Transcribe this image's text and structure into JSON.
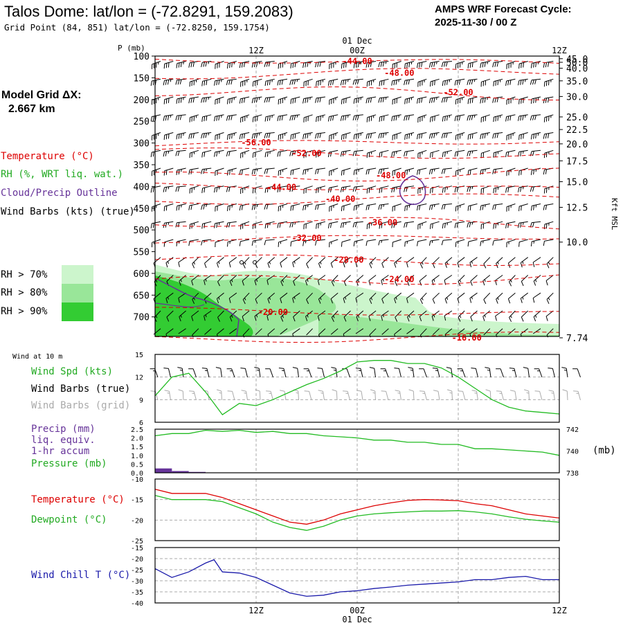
{
  "header": {
    "title": "Talos Dome:  lat/lon = (-72.8291, 159.2083)",
    "grid_point": "Grid Point (84, 851) lat/lon = (-72.8250, 159.1754)",
    "cycle_line1": "AMPS WRF Forecast Cycle:",
    "cycle_line2": "2025-11-30 / 00  Z"
  },
  "sidebar": {
    "model_grid_label": "Model Grid ΔX:",
    "model_grid_value": "2.667 km",
    "legend_temperature": "Temperature (°C)",
    "legend_rh": "RH (%, WRT liq. wat.)",
    "legend_cloud": "Cloud/Precip Outline",
    "legend_wind": "Wind Barbs (kts) (true)",
    "rh_70": "RH > 70%",
    "rh_80": "RH > 80%",
    "rh_90": "RH > 90%"
  },
  "panel_labels": {
    "wind_10m": "Wind at 10 m",
    "wind_spd": "Wind Spd (kts)",
    "wind_barbs_true": "Wind Barbs (true)",
    "wind_barbs_grid": "Wind Barbs (grid)",
    "precip": "Precip (mm)",
    "liq_equiv": "liq. equiv.",
    "accum": "1-hr accum",
    "pressure": "Pressure (mb)",
    "pressure_unit": "(mb)",
    "temperature": "Temperature (°C)",
    "dewpoint": "Dewpoint (°C)",
    "wind_chill": "Wind Chill T (°C)",
    "p_axis_label": "P (mb)",
    "kft_label": "Kft MSL"
  },
  "colors": {
    "temp": "#dd0000",
    "rh70": "#ccf5cc",
    "rh80": "#99e699",
    "rh90": "#33cc33",
    "cloud": "#663399",
    "windspd": "#22bb22",
    "pressure": "#22bb22",
    "precip": "#663399",
    "dewpoint": "#22bb22",
    "windchill": "#1a1aaa",
    "grid_barbs": "#aaaaaa"
  },
  "chart_data": {
    "time_axis": {
      "start_hour": 0,
      "end_hour": 48,
      "tick_hours": [
        12,
        24,
        36,
        48
      ],
      "top_labels": [
        "12Z",
        "00Z",
        "12Z"
      ],
      "date_label": "01 Dec",
      "bottom_labels": [
        "12Z",
        "00Z",
        "12Z"
      ]
    },
    "sounding": {
      "type": "contour",
      "pressure_levels": [
        100,
        150,
        200,
        250,
        300,
        350,
        400,
        450,
        500,
        550,
        600,
        650,
        700
      ],
      "pressure_range": [
        100,
        745
      ],
      "height_labels": [
        "50.0",
        "45.0",
        "40.0",
        "35.0",
        "30.0",
        "25.0",
        "22.5",
        "20.0",
        "17.5",
        "15.0",
        "12.5",
        "10.0",
        "7.74"
      ],
      "height_label_pressures": [
        90,
        106,
        128,
        157,
        193,
        240,
        269,
        302,
        341,
        389,
        448,
        528,
        745
      ],
      "temperature_labels": [
        {
          "text": "-44.00",
          "hour": 24,
          "p": 112
        },
        {
          "text": "-48.00",
          "hour": 29,
          "p": 139
        },
        {
          "text": "-52.00",
          "hour": 36,
          "p": 184
        },
        {
          "text": "-56.00",
          "hour": 12,
          "p": 299
        },
        {
          "text": "-52.00",
          "hour": 18,
          "p": 324
        },
        {
          "text": "-48.00",
          "hour": 28,
          "p": 375
        },
        {
          "text": "-44.00",
          "hour": 15,
          "p": 402
        },
        {
          "text": "-40.00",
          "hour": 22,
          "p": 429
        },
        {
          "text": "-36.00",
          "hour": 27,
          "p": 483
        },
        {
          "text": "-32.00",
          "hour": 18,
          "p": 519
        },
        {
          "text": "-28.00",
          "hour": 23,
          "p": 569
        },
        {
          "text": "-24.00",
          "hour": 29,
          "p": 614
        },
        {
          "text": "-20.00",
          "hour": 14,
          "p": 689
        },
        {
          "text": "-16.00",
          "hour": 37,
          "p": 748
        }
      ]
    },
    "surface_wind": {
      "type": "line",
      "ylim": [
        6,
        15
      ],
      "yticks": [
        6,
        9,
        12,
        15
      ],
      "hours": [
        0,
        2,
        4,
        6,
        8,
        10,
        12,
        14,
        16,
        18,
        20,
        22,
        24,
        26,
        28,
        30,
        32,
        34,
        36,
        38,
        40,
        42,
        44,
        46,
        48
      ],
      "speed_kts": [
        9.5,
        12,
        12.5,
        10,
        7,
        8.5,
        8.2,
        9,
        10,
        11,
        11.8,
        12.8,
        14,
        14.2,
        14.2,
        13.8,
        13.8,
        13.2,
        12,
        10.5,
        9,
        8,
        7.5,
        7.3,
        7.1
      ]
    },
    "precip_pressure": {
      "type": "bar+line",
      "precip_ylim": [
        0,
        2.5
      ],
      "precip_ticks": [
        "0.0",
        "0.5",
        "1.0",
        "1.5",
        "2.0",
        "2.5"
      ],
      "pressure_ylim": [
        738,
        742
      ],
      "pressure_ticks": [
        "738",
        "740",
        "742"
      ],
      "precip_bars": [
        {
          "hour_start": 0,
          "hour_end": 2,
          "mm": 0.25
        },
        {
          "hour_start": 2,
          "hour_end": 4,
          "mm": 0.1
        },
        {
          "hour_start": 4,
          "hour_end": 6,
          "mm": 0.05
        }
      ],
      "hours": [
        0,
        2,
        4,
        6,
        8,
        10,
        12,
        14,
        16,
        18,
        20,
        22,
        24,
        26,
        28,
        30,
        32,
        34,
        36,
        38,
        40,
        42,
        44,
        46,
        48
      ],
      "pressure_mb": [
        741.4,
        741.6,
        741.6,
        741.9,
        741.8,
        741.9,
        741.7,
        741.8,
        741.6,
        741.6,
        741.4,
        741.3,
        741.2,
        741.0,
        741.0,
        740.8,
        740.8,
        740.6,
        740.6,
        740.2,
        740.2,
        740.1,
        740.0,
        739.9,
        739.6
      ]
    },
    "temp_dewpoint": {
      "type": "line",
      "ylim": [
        -25,
        -10
      ],
      "yticks": [
        -25,
        -20,
        -15,
        -10
      ],
      "hours": [
        0,
        2,
        4,
        6,
        8,
        10,
        12,
        14,
        16,
        18,
        20,
        22,
        24,
        26,
        28,
        30,
        32,
        34,
        36,
        38,
        40,
        42,
        44,
        46,
        48
      ],
      "temperature": [
        -12.5,
        -13.5,
        -13.5,
        -13.5,
        -14.5,
        -16,
        -17.5,
        -19,
        -20.5,
        -21,
        -20,
        -18.5,
        -17.5,
        -16.5,
        -15.8,
        -15.2,
        -15,
        -15.1,
        -15.3,
        -16,
        -16.5,
        -17.5,
        -18.5,
        -19,
        -19.5
      ],
      "dewpoint": [
        -14,
        -15,
        -15,
        -15,
        -15.5,
        -17,
        -18.5,
        -20.5,
        -21.8,
        -22.5,
        -21.5,
        -20,
        -19,
        -18.5,
        -18.2,
        -18,
        -17.8,
        -17.8,
        -17.7,
        -18,
        -18.5,
        -19.2,
        -19.8,
        -20.2,
        -20.5
      ]
    },
    "wind_chill": {
      "type": "line",
      "ylim": [
        -40,
        -15
      ],
      "yticks": [
        -40,
        -35,
        -30,
        -25,
        -20,
        -15
      ],
      "hours": [
        0,
        2,
        4,
        6,
        7,
        8,
        10,
        12,
        14,
        16,
        18,
        20,
        22,
        24,
        26,
        28,
        30,
        32,
        34,
        36,
        38,
        40,
        42,
        44,
        46,
        48
      ],
      "values": [
        -24.5,
        -28.5,
        -26,
        -22,
        -20.5,
        -26,
        -26.5,
        -28.5,
        -32,
        -35.5,
        -37,
        -36.5,
        -35,
        -34.5,
        -33.5,
        -32.8,
        -32,
        -31.5,
        -31,
        -30.5,
        -29.5,
        -29.5,
        -28.5,
        -28,
        -29.5,
        -29.5
      ]
    }
  }
}
